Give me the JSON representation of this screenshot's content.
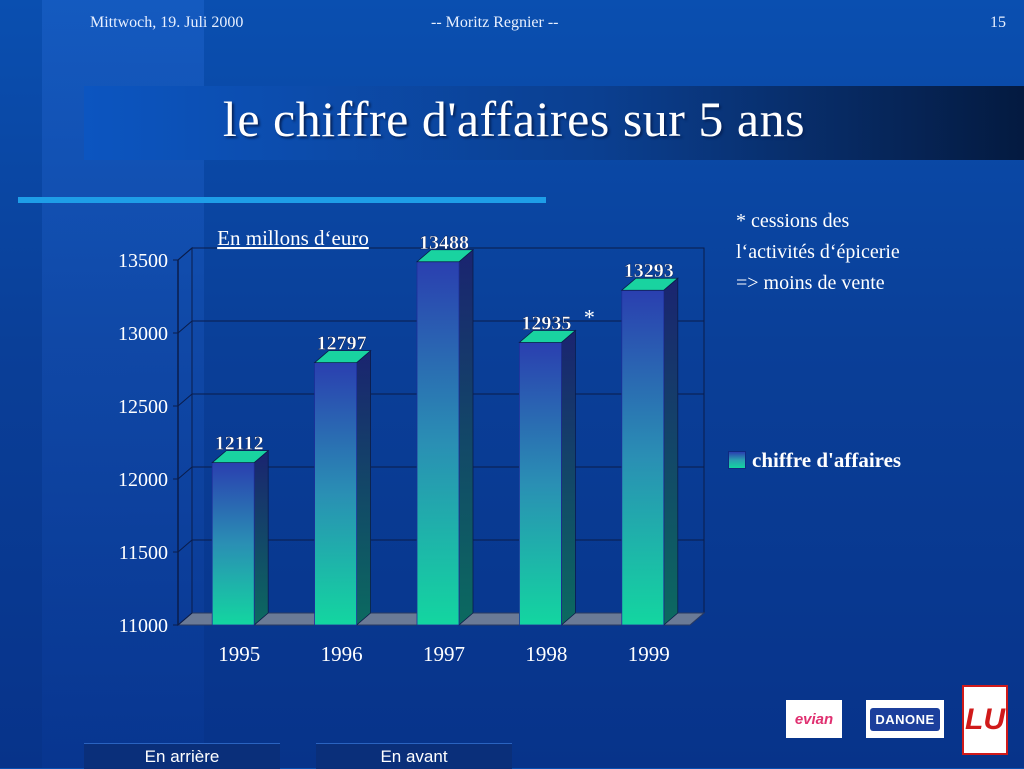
{
  "header": {
    "date": "Mittwoch, 19. Juli 2000",
    "author": "-- Moritz Regnier --",
    "page_number": "15"
  },
  "title": "le chiffre d'affaires sur 5 ans",
  "note": {
    "line1": "* cessions des",
    "line2": "l‘activités d‘épicerie",
    "line3": "=> moins de vente"
  },
  "legend_label": "chiffre d'affaires",
  "logos": {
    "evian": "evian",
    "danone": "DANONE",
    "lu": "LU"
  },
  "nav": {
    "back": "En arrière",
    "next": "En avant"
  },
  "colors": {
    "background": "#0a4fb0",
    "bar_top": "#2a3fb0",
    "bar_bottom": "#13d6a0",
    "accent_rule": "#1e9ee8"
  },
  "chart_data": {
    "type": "bar",
    "style": "3d",
    "annotation": "En millons d‘euro",
    "categories": [
      "1995",
      "1996",
      "1997",
      "1998",
      "1999"
    ],
    "series": [
      {
        "name": "chiffre d'affaires",
        "values": [
          12112,
          12797,
          13488,
          12935,
          13293
        ]
      }
    ],
    "data_labels": [
      "12112",
      "12797",
      "13488",
      "12935",
      "13293"
    ],
    "marked_category": "1998",
    "marker": "*",
    "ylim": [
      11000,
      13500
    ],
    "yticks": [
      11000,
      11500,
      12000,
      12500,
      13000,
      13500
    ],
    "grid": true,
    "legend_position": "right"
  }
}
